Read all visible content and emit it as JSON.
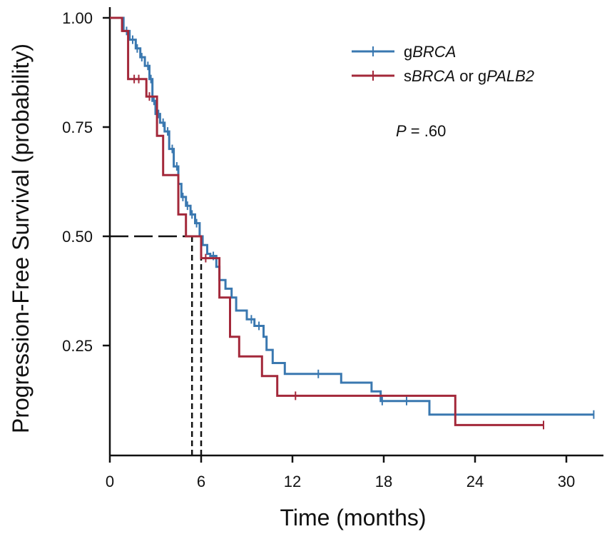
{
  "chart_data": {
    "type": "line",
    "step": true,
    "xlabel": "Time (months)",
    "ylabel": "Progression-Free Survival (probability)",
    "xlim": [
      0,
      33
    ],
    "ylim": [
      0,
      1
    ],
    "x_ticks": [
      0,
      6,
      12,
      18,
      24,
      30
    ],
    "y_ticks": [
      0.25,
      0.5,
      0.75,
      1.0
    ],
    "x_tick_labels": [
      "0",
      "6",
      "12",
      "18",
      "24",
      "30"
    ],
    "y_tick_labels": [
      "0.25",
      "0.50",
      "0.75",
      "1.00"
    ],
    "legend": {
      "placement": "top-right",
      "entries": [
        {
          "prefix": "g",
          "italic": "BRCA",
          "middle": "",
          "prefix2": "",
          "italic2": ""
        },
        {
          "prefix": "s",
          "italic": "BRCA",
          "middle": " or ",
          "prefix2": "g",
          "italic2": "PALB2"
        }
      ]
    },
    "annotation": {
      "italic": "P",
      "text": " = .60"
    },
    "median_line": {
      "y": 0.5,
      "x_values": [
        5.4,
        6.0
      ]
    },
    "series": [
      {
        "color": "#3a78b0",
        "points": [
          [
            0,
            1.0
          ],
          [
            0.9,
            1.0
          ],
          [
            0.9,
            0.97
          ],
          [
            1.3,
            0.97
          ],
          [
            1.3,
            0.95
          ],
          [
            1.7,
            0.95
          ],
          [
            1.7,
            0.93
          ],
          [
            2.0,
            0.93
          ],
          [
            2.0,
            0.91
          ],
          [
            2.3,
            0.91
          ],
          [
            2.3,
            0.89
          ],
          [
            2.6,
            0.89
          ],
          [
            2.6,
            0.86
          ],
          [
            2.8,
            0.86
          ],
          [
            2.8,
            0.81
          ],
          [
            3.0,
            0.81
          ],
          [
            3.0,
            0.78
          ],
          [
            3.3,
            0.78
          ],
          [
            3.3,
            0.76
          ],
          [
            3.6,
            0.76
          ],
          [
            3.6,
            0.74
          ],
          [
            3.9,
            0.74
          ],
          [
            3.9,
            0.7
          ],
          [
            4.2,
            0.7
          ],
          [
            4.2,
            0.66
          ],
          [
            4.5,
            0.66
          ],
          [
            4.5,
            0.62
          ],
          [
            4.7,
            0.62
          ],
          [
            4.7,
            0.59
          ],
          [
            5.0,
            0.59
          ],
          [
            5.0,
            0.57
          ],
          [
            5.3,
            0.57
          ],
          [
            5.3,
            0.55
          ],
          [
            5.6,
            0.55
          ],
          [
            5.6,
            0.53
          ],
          [
            5.9,
            0.53
          ],
          [
            5.9,
            0.5
          ],
          [
            6.1,
            0.5
          ],
          [
            6.1,
            0.48
          ],
          [
            6.4,
            0.48
          ],
          [
            6.4,
            0.46
          ],
          [
            6.6,
            0.46
          ],
          [
            6.6,
            0.455
          ],
          [
            7.0,
            0.455
          ],
          [
            7.0,
            0.43
          ],
          [
            7.2,
            0.43
          ],
          [
            7.2,
            0.4
          ],
          [
            7.6,
            0.4
          ],
          [
            7.6,
            0.38
          ],
          [
            8.0,
            0.38
          ],
          [
            8.0,
            0.36
          ],
          [
            8.3,
            0.36
          ],
          [
            8.3,
            0.33
          ],
          [
            9.0,
            0.33
          ],
          [
            9.0,
            0.31
          ],
          [
            9.5,
            0.31
          ],
          [
            9.5,
            0.295
          ],
          [
            10.1,
            0.295
          ],
          [
            10.1,
            0.27
          ],
          [
            10.3,
            0.27
          ],
          [
            10.3,
            0.24
          ],
          [
            10.7,
            0.24
          ],
          [
            10.7,
            0.21
          ],
          [
            11.5,
            0.21
          ],
          [
            11.5,
            0.185
          ],
          [
            15.2,
            0.185
          ],
          [
            15.2,
            0.165
          ],
          [
            17.2,
            0.165
          ],
          [
            17.2,
            0.145
          ],
          [
            17.8,
            0.145
          ],
          [
            17.8,
            0.123
          ],
          [
            21.0,
            0.123
          ],
          [
            21.0,
            0.092
          ],
          [
            31.8,
            0.092
          ]
        ],
        "censor_marks": [
          [
            1.1,
            0.97
          ],
          [
            1.5,
            0.95
          ],
          [
            1.8,
            0.93
          ],
          [
            2.1,
            0.91
          ],
          [
            2.5,
            0.89
          ],
          [
            2.7,
            0.86
          ],
          [
            2.9,
            0.81
          ],
          [
            3.2,
            0.78
          ],
          [
            3.5,
            0.76
          ],
          [
            3.8,
            0.74
          ],
          [
            4.1,
            0.7
          ],
          [
            4.4,
            0.66
          ],
          [
            4.8,
            0.59
          ],
          [
            5.1,
            0.57
          ],
          [
            5.4,
            0.55
          ],
          [
            5.7,
            0.53
          ],
          [
            6.8,
            0.455
          ],
          [
            9.3,
            0.31
          ],
          [
            9.8,
            0.295
          ],
          [
            13.7,
            0.185
          ],
          [
            17.9,
            0.123
          ],
          [
            19.5,
            0.123
          ],
          [
            31.8,
            0.092
          ]
        ]
      },
      {
        "color": "#a3283a",
        "points": [
          [
            0,
            1.0
          ],
          [
            0.8,
            1.0
          ],
          [
            0.8,
            0.97
          ],
          [
            1.2,
            0.97
          ],
          [
            1.2,
            0.86
          ],
          [
            2.4,
            0.86
          ],
          [
            2.4,
            0.82
          ],
          [
            3.1,
            0.82
          ],
          [
            3.1,
            0.73
          ],
          [
            3.5,
            0.73
          ],
          [
            3.5,
            0.64
          ],
          [
            4.5,
            0.64
          ],
          [
            4.5,
            0.55
          ],
          [
            5.0,
            0.55
          ],
          [
            5.0,
            0.5
          ],
          [
            6.0,
            0.5
          ],
          [
            6.0,
            0.45
          ],
          [
            7.2,
            0.45
          ],
          [
            7.2,
            0.36
          ],
          [
            7.9,
            0.36
          ],
          [
            7.9,
            0.27
          ],
          [
            8.5,
            0.27
          ],
          [
            8.5,
            0.225
          ],
          [
            10.0,
            0.225
          ],
          [
            10.0,
            0.18
          ],
          [
            11.0,
            0.18
          ],
          [
            11.0,
            0.135
          ],
          [
            22.7,
            0.135
          ],
          [
            22.7,
            0.068
          ],
          [
            28.5,
            0.068
          ]
        ],
        "censor_marks": [
          [
            1.6,
            0.86
          ],
          [
            1.9,
            0.86
          ],
          [
            2.6,
            0.82
          ],
          [
            6.3,
            0.45
          ],
          [
            12.2,
            0.135
          ],
          [
            28.5,
            0.068
          ]
        ]
      }
    ]
  }
}
